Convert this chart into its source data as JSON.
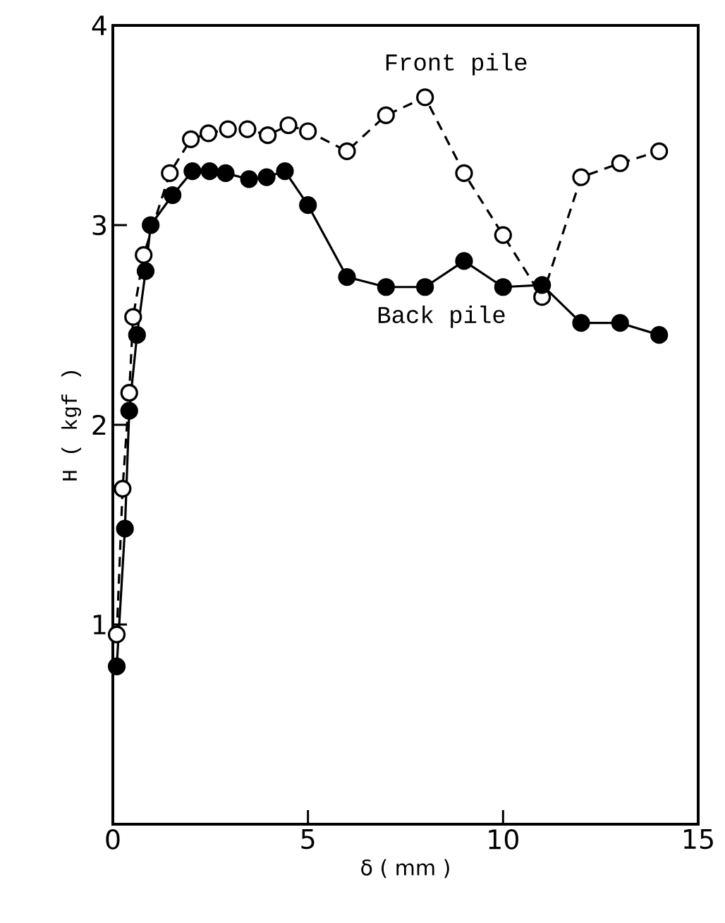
{
  "chart_data": {
    "type": "line",
    "xlabel": "δ ( mm )",
    "ylabel": "H ( kgf )",
    "xlim": [
      0,
      15
    ],
    "ylim": [
      0,
      4
    ],
    "xticks": [
      0,
      5,
      10,
      15
    ],
    "yticks": [
      1,
      2,
      3,
      4
    ],
    "grid": false,
    "legend": false,
    "marker": "circle",
    "series": [
      {
        "name": "Front pile",
        "color": "#000000",
        "line_style": "dashed",
        "x": [
          0.1,
          0.25,
          0.42,
          0.52,
          0.79,
          1.46,
          2.0,
          2.45,
          2.95,
          3.45,
          3.97,
          4.5,
          5.0,
          6.0,
          7.0,
          8.0,
          9.0,
          10.0,
          11.0,
          12.0,
          13.0,
          14.0
        ],
        "values": [
          0.95,
          1.68,
          2.16,
          2.54,
          2.85,
          3.26,
          3.43,
          3.46,
          3.48,
          3.48,
          3.45,
          3.5,
          3.47,
          3.37,
          3.55,
          3.64,
          3.26,
          2.95,
          2.64,
          3.24,
          3.31,
          3.37
        ]
      },
      {
        "name": "Back pile",
        "color": "#000000",
        "line_style": "solid",
        "x": [
          0.1,
          0.31,
          0.42,
          0.62,
          0.84,
          0.97,
          1.53,
          2.04,
          2.48,
          2.89,
          3.49,
          3.94,
          4.41,
          5.0,
          6.0,
          7.0,
          8.0,
          9.0,
          10.0,
          11.0,
          12.0,
          13.0,
          14.0
        ],
        "values": [
          0.79,
          1.48,
          2.07,
          2.45,
          2.77,
          3.0,
          3.15,
          3.27,
          3.27,
          3.26,
          3.23,
          3.24,
          3.27,
          3.1,
          2.74,
          2.69,
          2.69,
          2.82,
          2.69,
          2.7,
          2.51,
          2.51,
          2.45
        ]
      }
    ]
  }
}
